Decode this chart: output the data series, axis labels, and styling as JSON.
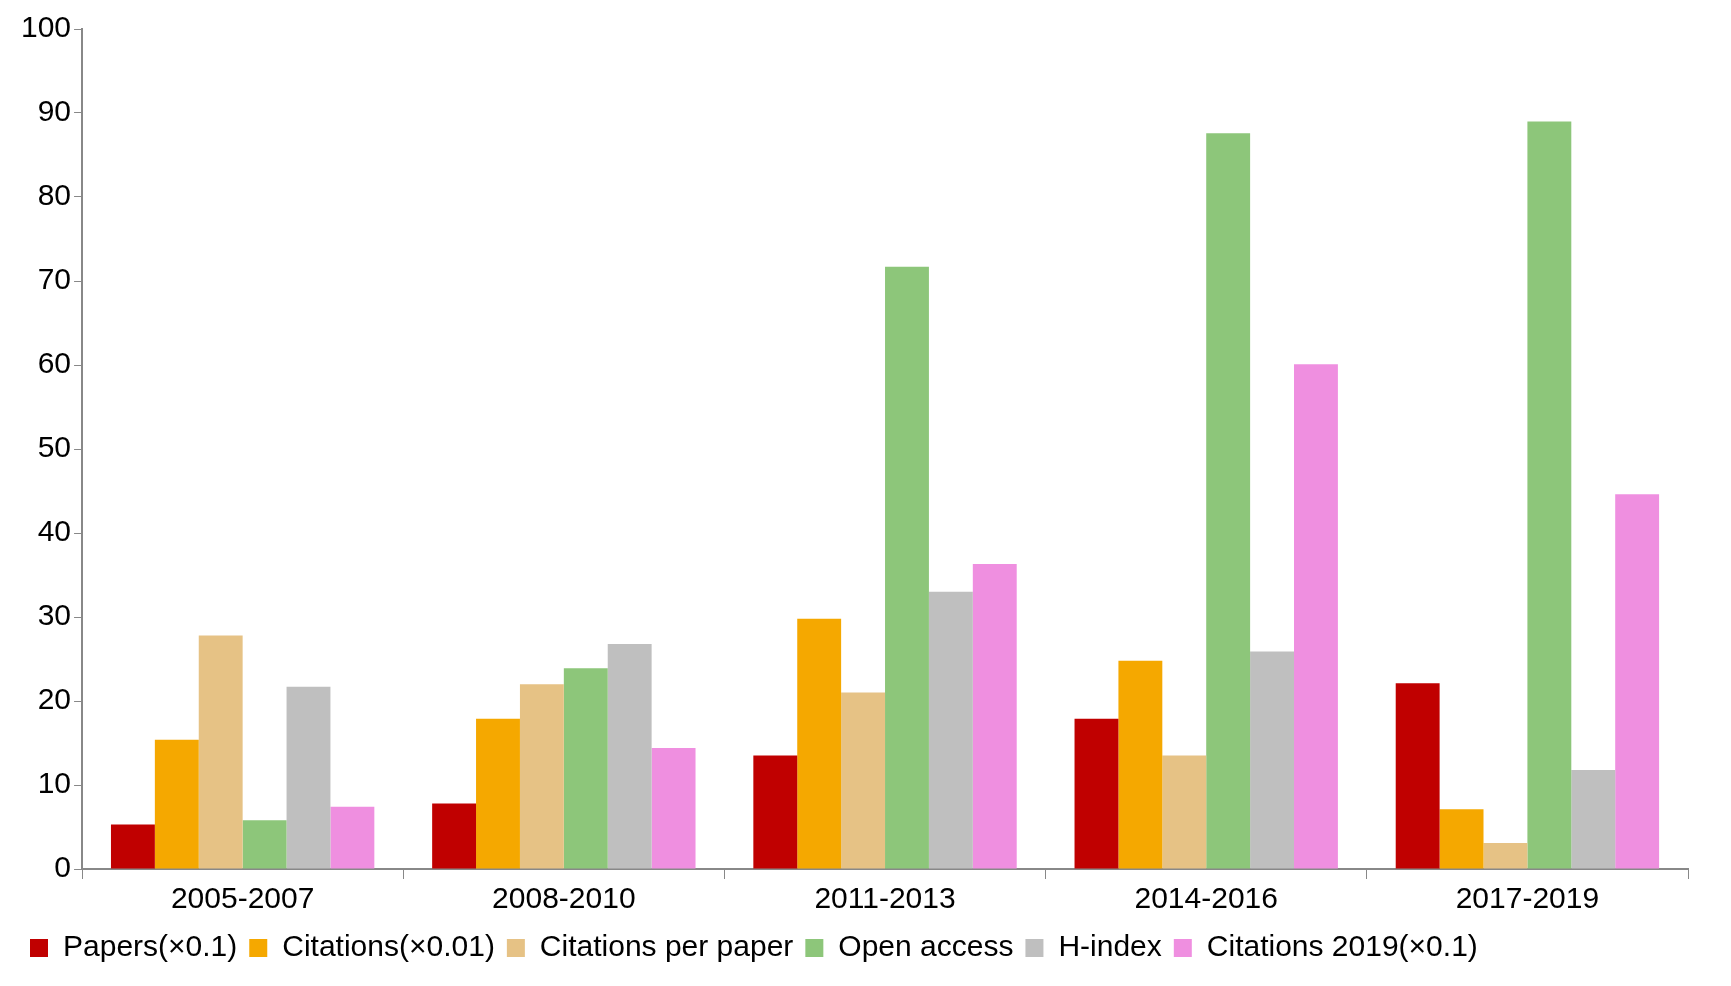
{
  "chart_data": {
    "type": "bar",
    "categories": [
      "2005-2007",
      "2008-2010",
      "2011-2013",
      "2014-2016",
      "2017-2019"
    ],
    "series": [
      {
        "name": "Papers(×0.1)",
        "color": "#c00000",
        "values": [
          5.3,
          7.8,
          13.5,
          17.9,
          22.1
        ]
      },
      {
        "name": "Citations(×0.01)",
        "color": "#f5a800",
        "values": [
          15.4,
          17.9,
          29.8,
          24.8,
          7.1
        ]
      },
      {
        "name": "Citations per paper",
        "color": "#e6c285",
        "values": [
          27.8,
          22,
          21,
          13.5,
          3.1
        ]
      },
      {
        "name": "Open access",
        "color": "#8dc67a",
        "values": [
          5.8,
          23.9,
          71.7,
          87.6,
          89
        ]
      },
      {
        "name": "H-index",
        "color": "#bfbfbf",
        "values": [
          21.7,
          26.8,
          33,
          25.9,
          11.8
        ]
      },
      {
        "name": "Citations 2019(×0.1)",
        "color": "#ef8fe0",
        "values": [
          7.4,
          14.4,
          36.3,
          60.1,
          44.6
        ]
      }
    ],
    "ylim": [
      0,
      100
    ],
    "yticks": [
      0,
      10,
      20,
      30,
      40,
      50,
      60,
      70,
      80,
      90,
      100
    ],
    "grid": false,
    "legend": "bottom"
  }
}
